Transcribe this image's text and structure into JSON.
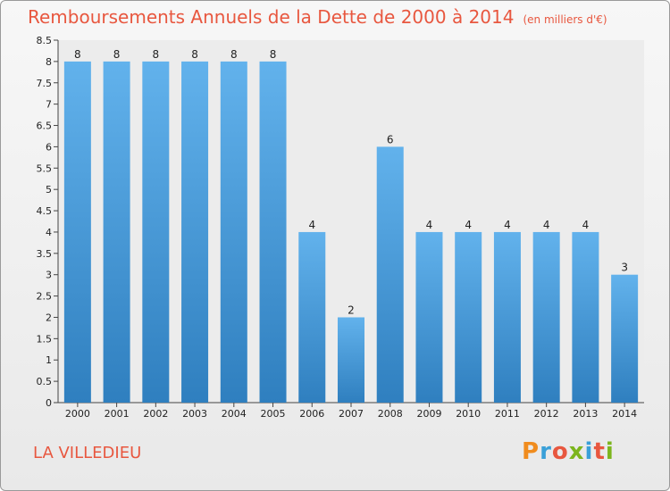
{
  "title": "Remboursements Annuels de la Dette de 2000 à 2014",
  "unit": "(en milliers d'€)",
  "place": "LA VILLEDIEU",
  "logo": {
    "text": "Proxiti",
    "colors": [
      "#f08c1e",
      "#3aa0d8",
      "#e8573f",
      "#7cb51d",
      "#3aa0d8",
      "#e8573f",
      "#7cb51d"
    ]
  },
  "colors": {
    "accent": "#e8573f",
    "bar_top": "#62b2ec",
    "bar_bottom": "#2f7fbf"
  },
  "chart_data": {
    "type": "bar",
    "categories": [
      "2000",
      "2001",
      "2002",
      "2003",
      "2004",
      "2005",
      "2006",
      "2007",
      "2008",
      "2009",
      "2010",
      "2011",
      "2012",
      "2013",
      "2014"
    ],
    "values": [
      8,
      8,
      8,
      8,
      8,
      8,
      4,
      2,
      6,
      4,
      4,
      4,
      4,
      4,
      3
    ],
    "y_ticks": [
      "0",
      "0.5",
      "1",
      "1.5",
      "2",
      "2.5",
      "3",
      "3.5",
      "4",
      "4.5",
      "5",
      "5.5",
      "6",
      "6.5",
      "7",
      "7.5",
      "8",
      "8.5"
    ],
    "ylim": [
      0,
      8.5
    ],
    "grid": false,
    "legend": "none"
  }
}
